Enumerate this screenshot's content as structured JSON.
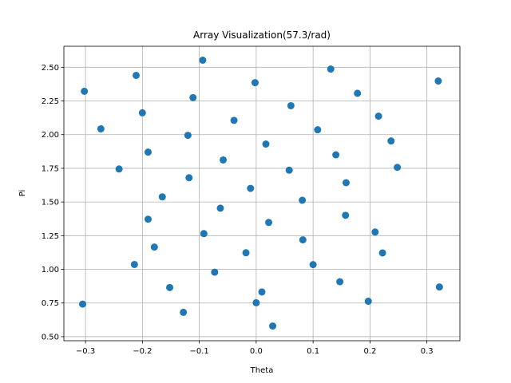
{
  "chart_data": {
    "type": "scatter",
    "title": "Array Visualization(57.3/rad)",
    "xlabel": "Theta",
    "ylabel": "Pi",
    "xlim": [
      -0.338,
      0.358
    ],
    "ylim": [
      0.47,
      2.656
    ],
    "xticks": [
      -0.3,
      -0.2,
      -0.1,
      0.0,
      0.1,
      0.2,
      0.3
    ],
    "xtick_labels": [
      "−0.3",
      "−0.2",
      "−0.1",
      "0.0",
      "0.1",
      "0.2",
      "0.3"
    ],
    "yticks": [
      0.5,
      0.75,
      1.0,
      1.25,
      1.5,
      1.75,
      2.0,
      2.25,
      2.5
    ],
    "ytick_labels": [
      "0.50",
      "0.75",
      "1.00",
      "1.25",
      "1.50",
      "1.75",
      "2.00",
      "2.25",
      "2.50"
    ],
    "grid": true,
    "color": "#1f77b4",
    "points": [
      {
        "x": -0.302,
        "y": 2.322
      },
      {
        "x": -0.305,
        "y": 0.742
      },
      {
        "x": -0.273,
        "y": 2.043
      },
      {
        "x": -0.241,
        "y": 1.745
      },
      {
        "x": -0.211,
        "y": 2.44
      },
      {
        "x": -0.2,
        "y": 2.162
      },
      {
        "x": -0.19,
        "y": 1.87
      },
      {
        "x": -0.19,
        "y": 1.372
      },
      {
        "x": -0.179,
        "y": 1.165
      },
      {
        "x": -0.214,
        "y": 1.036
      },
      {
        "x": -0.165,
        "y": 1.538
      },
      {
        "x": -0.152,
        "y": 0.865
      },
      {
        "x": -0.128,
        "y": 0.681
      },
      {
        "x": -0.12,
        "y": 1.995
      },
      {
        "x": -0.118,
        "y": 1.68
      },
      {
        "x": -0.111,
        "y": 2.275
      },
      {
        "x": -0.094,
        "y": 2.553
      },
      {
        "x": -0.092,
        "y": 1.265
      },
      {
        "x": -0.073,
        "y": 0.979
      },
      {
        "x": -0.063,
        "y": 1.454
      },
      {
        "x": -0.058,
        "y": 1.812
      },
      {
        "x": -0.039,
        "y": 2.106
      },
      {
        "x": -0.018,
        "y": 1.123
      },
      {
        "x": -0.01,
        "y": 1.601
      },
      {
        "x": -0.002,
        "y": 2.386
      },
      {
        "x": 0.0,
        "y": 0.752
      },
      {
        "x": 0.01,
        "y": 0.832
      },
      {
        "x": 0.017,
        "y": 1.93
      },
      {
        "x": 0.022,
        "y": 1.348
      },
      {
        "x": 0.029,
        "y": 0.579
      },
      {
        "x": 0.058,
        "y": 1.736
      },
      {
        "x": 0.061,
        "y": 2.215
      },
      {
        "x": 0.081,
        "y": 1.513
      },
      {
        "x": 0.082,
        "y": 1.219
      },
      {
        "x": 0.1,
        "y": 1.035
      },
      {
        "x": 0.108,
        "y": 2.036
      },
      {
        "x": 0.131,
        "y": 2.487
      },
      {
        "x": 0.14,
        "y": 1.85
      },
      {
        "x": 0.147,
        "y": 0.908
      },
      {
        "x": 0.157,
        "y": 1.401
      },
      {
        "x": 0.158,
        "y": 1.643
      },
      {
        "x": 0.178,
        "y": 2.307
      },
      {
        "x": 0.197,
        "y": 0.763
      },
      {
        "x": 0.209,
        "y": 1.277
      },
      {
        "x": 0.215,
        "y": 2.137
      },
      {
        "x": 0.222,
        "y": 1.122
      },
      {
        "x": 0.237,
        "y": 1.953
      },
      {
        "x": 0.248,
        "y": 1.757
      },
      {
        "x": 0.32,
        "y": 2.398
      },
      {
        "x": 0.322,
        "y": 0.869
      }
    ]
  }
}
